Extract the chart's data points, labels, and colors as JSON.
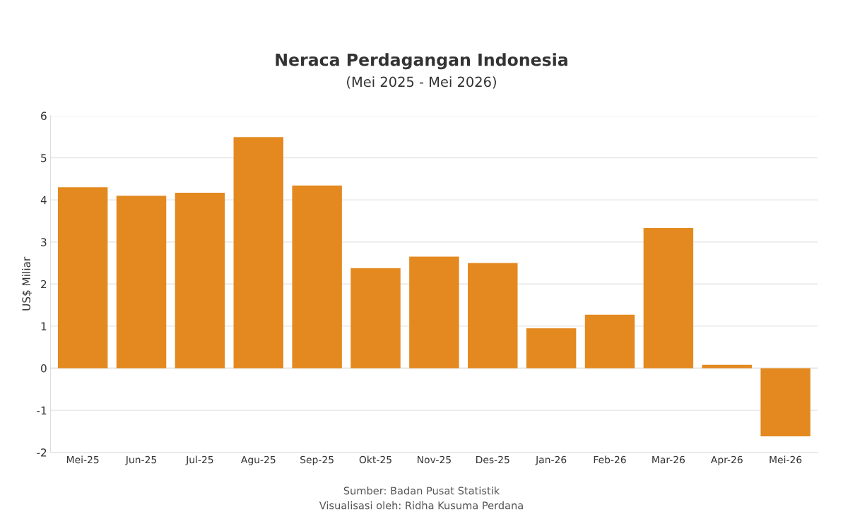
{
  "chart_data": {
    "type": "bar",
    "title": "Neraca Perdagangan Indonesia",
    "subtitle": "(Mei 2025 - Mei 2026)",
    "ylabel": "US$ Miliar",
    "categories": [
      "Mei-25",
      "Jun-25",
      "Jul-25",
      "Agu-25",
      "Sep-25",
      "Okt-25",
      "Nov-25",
      "Des-25",
      "Jan-26",
      "Feb-26",
      "Mar-26",
      "Apr-26",
      "Mei-26"
    ],
    "values": [
      4.3,
      4.1,
      4.17,
      5.49,
      4.34,
      2.38,
      2.65,
      2.5,
      0.95,
      1.27,
      3.33,
      0.08,
      -1.62
    ],
    "color": "#e3891f",
    "ylim": [
      -2,
      6
    ],
    "yticks": [
      -2,
      -1,
      0,
      1,
      2,
      3,
      4,
      5,
      6
    ],
    "grid": "y",
    "annotations": [
      "Sumber: Badan Pusat Statistik",
      "Visualisasi oleh: Ridha Kusuma Perdana"
    ]
  }
}
